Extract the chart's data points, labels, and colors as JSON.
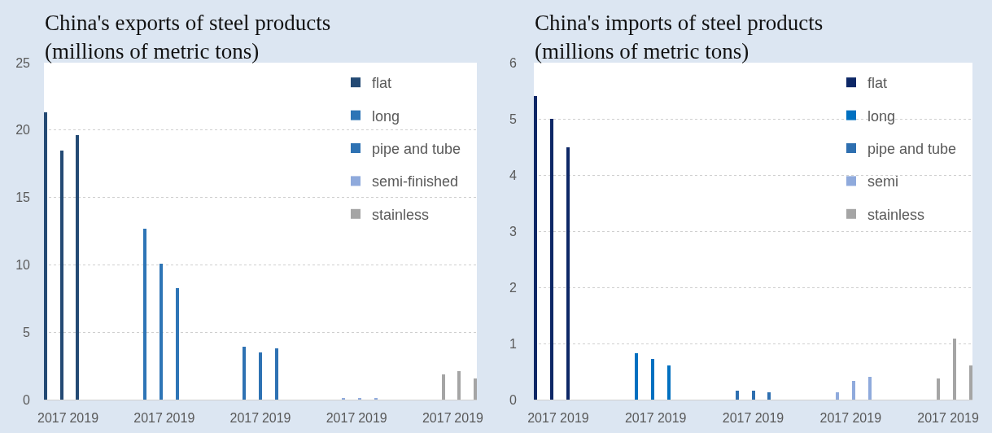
{
  "chart_data": [
    {
      "type": "bar",
      "title": "China's exports of steel products\n(millions of metric tons)",
      "categories": [
        "2017",
        null,
        "2019",
        null,
        null,
        null,
        "2017",
        null,
        "2019",
        null,
        null,
        null,
        "2017",
        null,
        "2019",
        null,
        null,
        null,
        "2017",
        null,
        "2019",
        null,
        null,
        null,
        "2017",
        null,
        "2019"
      ],
      "series": [
        {
          "name": "flat",
          "color": "#244a74",
          "values": [
            21.3,
            18.5,
            19.6,
            null,
            null,
            null,
            null,
            null,
            null,
            null,
            null,
            null,
            null,
            null,
            null,
            null,
            null,
            null,
            null,
            null,
            null,
            null,
            null,
            null,
            null,
            null,
            null
          ]
        },
        {
          "name": "long",
          "color": "#2e75b6",
          "values": [
            null,
            null,
            null,
            null,
            null,
            null,
            12.7,
            10.1,
            8.3,
            null,
            null,
            null,
            null,
            null,
            null,
            null,
            null,
            null,
            null,
            null,
            null,
            null,
            null,
            null,
            null,
            null,
            null
          ]
        },
        {
          "name": "pipe and tube",
          "color": "#2e72b3",
          "values": [
            null,
            null,
            null,
            null,
            null,
            null,
            null,
            null,
            null,
            null,
            null,
            null,
            3.9,
            3.5,
            3.8,
            null,
            null,
            null,
            null,
            null,
            null,
            null,
            null,
            null,
            null,
            null,
            null
          ]
        },
        {
          "name": "semi-finished",
          "color": "#8faadc",
          "values": [
            null,
            null,
            null,
            null,
            null,
            null,
            null,
            null,
            null,
            null,
            null,
            null,
            null,
            null,
            null,
            null,
            null,
            null,
            0.1,
            0.1,
            0.1,
            null,
            null,
            null,
            null,
            null,
            null
          ]
        },
        {
          "name": "stainless",
          "color": "#a5a5a5",
          "values": [
            null,
            null,
            null,
            null,
            null,
            null,
            null,
            null,
            null,
            null,
            null,
            null,
            null,
            null,
            null,
            null,
            null,
            null,
            null,
            null,
            null,
            null,
            null,
            null,
            1.9,
            2.1,
            1.6
          ]
        }
      ],
      "ylim": [
        0,
        25
      ],
      "yticks": [
        0,
        5,
        10,
        15,
        20,
        25
      ],
      "grid": "y",
      "legend": "top right"
    },
    {
      "type": "bar",
      "title": "China's imports of steel products\n(millions of metric tons)",
      "categories": [
        "2017",
        null,
        "2019",
        null,
        null,
        null,
        "2017",
        null,
        "2019",
        null,
        null,
        null,
        "2017",
        null,
        "2019",
        null,
        null,
        null,
        "2017",
        null,
        "2019",
        null,
        null,
        null,
        "2017",
        null,
        "2019"
      ],
      "series": [
        {
          "name": "flat",
          "color": "#0d2766",
          "values": [
            5.4,
            5.0,
            4.5,
            null,
            null,
            null,
            null,
            null,
            null,
            null,
            null,
            null,
            null,
            null,
            null,
            null,
            null,
            null,
            null,
            null,
            null,
            null,
            null,
            null,
            null,
            null,
            null
          ]
        },
        {
          "name": "long",
          "color": "#0070c0",
          "values": [
            null,
            null,
            null,
            null,
            null,
            null,
            0.83,
            0.73,
            0.61,
            null,
            null,
            null,
            null,
            null,
            null,
            null,
            null,
            null,
            null,
            null,
            null,
            null,
            null,
            null,
            null,
            null,
            null
          ]
        },
        {
          "name": "pipe and tube",
          "color": "#2e6fb0",
          "values": [
            null,
            null,
            null,
            null,
            null,
            null,
            null,
            null,
            null,
            null,
            null,
            null,
            0.16,
            0.16,
            0.13,
            null,
            null,
            null,
            null,
            null,
            null,
            null,
            null,
            null,
            null,
            null,
            null
          ]
        },
        {
          "name": "semi",
          "color": "#8faadc",
          "values": [
            null,
            null,
            null,
            null,
            null,
            null,
            null,
            null,
            null,
            null,
            null,
            null,
            null,
            null,
            null,
            null,
            null,
            null,
            0.13,
            0.33,
            0.4,
            null,
            null,
            null,
            null,
            null,
            null
          ]
        },
        {
          "name": "stainless",
          "color": "#a5a5a5",
          "values": [
            null,
            null,
            null,
            null,
            null,
            null,
            null,
            null,
            null,
            null,
            null,
            null,
            null,
            null,
            null,
            null,
            null,
            null,
            null,
            null,
            null,
            null,
            null,
            null,
            0.38,
            1.08,
            0.61
          ]
        }
      ],
      "ylim": [
        0,
        6
      ],
      "yticks": [
        0,
        1,
        2,
        3,
        4,
        5,
        6
      ],
      "grid": "y",
      "legend": "top right"
    }
  ]
}
